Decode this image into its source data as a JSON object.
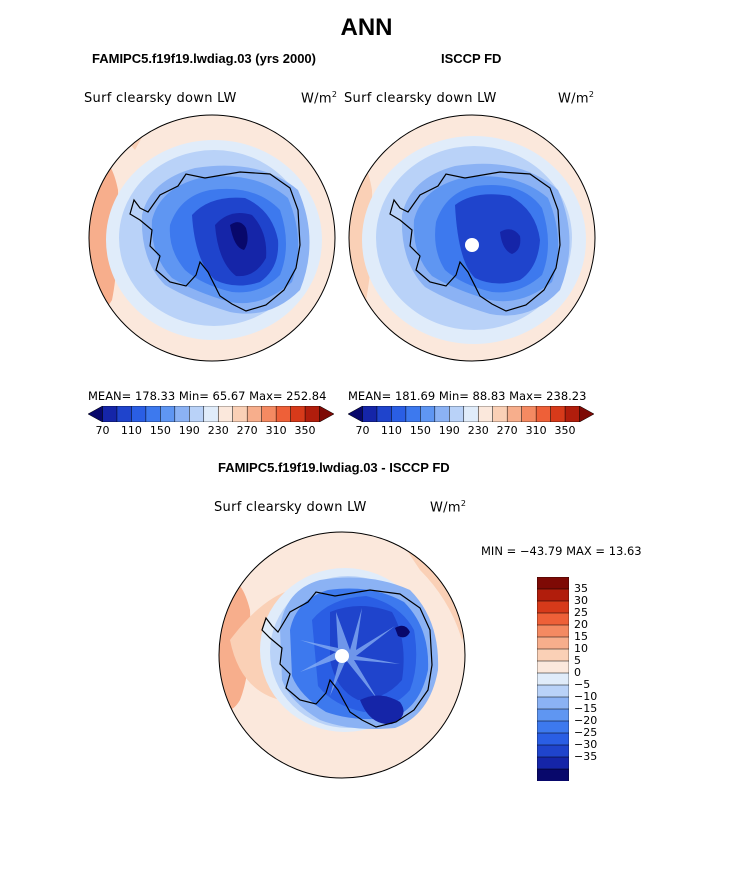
{
  "page_title": "ANN",
  "panels": [
    {
      "case_title": "FAMIPC5.f19f19.lwdiag.03 (yrs 2000)",
      "variable": "Surf clearsky down LW",
      "units_base": "W/m",
      "units_exp": "2",
      "stats": "MEAN= 178.33   Min=   65.67   Max= 252.84",
      "colorbar_labels": [
        "70",
        "110",
        "150",
        "190",
        "230",
        "270",
        "310",
        "350"
      ]
    },
    {
      "case_title": "ISCCP FD",
      "variable": "Surf clearsky down LW",
      "units_base": "W/m",
      "units_exp": "2",
      "stats": "MEAN= 181.69   Min=   88.83   Max= 238.23",
      "colorbar_labels": [
        "70",
        "110",
        "150",
        "190",
        "230",
        "270",
        "310",
        "350"
      ]
    }
  ],
  "diff_panel": {
    "case_title": "FAMIPC5.f19f19.lwdiag.03 - ISCCP FD",
    "variable": "Surf clearsky down LW",
    "units_base": "W/m",
    "units_exp": "2",
    "stats": "MIN = −43.79 MAX =  13.63",
    "colorbar_labels": [
      "35",
      "30",
      "25",
      "20",
      "15",
      "10",
      "5",
      "0",
      "−5",
      "−10",
      "−15",
      "−20",
      "−25",
      "−30",
      "−35"
    ]
  },
  "colors": {
    "field_scale": [
      "#08086b",
      "#1525a8",
      "#1f44cc",
      "#2a5ee4",
      "#3d79ee",
      "#5f96f2",
      "#8bb2f4",
      "#b9d2f8",
      "#e0ecfa",
      "#fbe8dc",
      "#fad0b6",
      "#f7ae8c",
      "#f48a62",
      "#ee6038",
      "#d73a1a",
      "#b11d0c",
      "#7e0a05"
    ],
    "diff_scale": [
      "#7e0a05",
      "#b11d0c",
      "#d73a1a",
      "#ee6038",
      "#f48a62",
      "#f7ae8c",
      "#fad0b6",
      "#fbe8dc",
      "#e0ecfa",
      "#b9d2f8",
      "#8bb2f4",
      "#5f96f2",
      "#3d79ee",
      "#2a5ee4",
      "#1f44cc",
      "#1525a8",
      "#08086b"
    ]
  },
  "chart_data": [
    {
      "type": "heatmap",
      "title": "FAMIPC5.f19f19.lwdiag.03 (yrs 2000)",
      "variable": "Surf clearsky down LW",
      "units": "W/m2",
      "projection": "south-polar-stereographic",
      "mean": 178.33,
      "min": 65.67,
      "max": 252.84,
      "contour_levels": [
        70,
        80,
        90,
        100,
        110,
        120,
        130,
        140,
        150,
        160,
        170,
        180,
        190,
        200,
        210,
        220,
        230,
        240,
        250,
        260,
        270,
        280,
        290,
        300,
        310,
        320,
        330,
        340,
        350
      ],
      "colorbar_labels": [
        70,
        110,
        150,
        190,
        230,
        270,
        310,
        350
      ]
    },
    {
      "type": "heatmap",
      "title": "ISCCP FD",
      "variable": "Surf clearsky down LW",
      "units": "W/m2",
      "projection": "south-polar-stereographic",
      "mean": 181.69,
      "min": 88.83,
      "max": 238.23,
      "contour_levels": [
        70,
        80,
        90,
        100,
        110,
        120,
        130,
        140,
        150,
        160,
        170,
        180,
        190,
        200,
        210,
        220,
        230,
        240,
        250,
        260,
        270,
        280,
        290,
        300,
        310,
        320,
        330,
        340,
        350
      ],
      "colorbar_labels": [
        70,
        110,
        150,
        190,
        230,
        270,
        310,
        350
      ]
    },
    {
      "type": "heatmap",
      "title": "FAMIPC5.f19f19.lwdiag.03 - ISCCP FD",
      "variable": "Surf clearsky down LW",
      "units": "W/m2",
      "projection": "south-polar-stereographic",
      "min": -43.79,
      "max": 13.63,
      "colorbar_labels": [
        35,
        30,
        25,
        20,
        15,
        10,
        5,
        0,
        -5,
        -10,
        -15,
        -20,
        -25,
        -30,
        -35
      ]
    }
  ]
}
